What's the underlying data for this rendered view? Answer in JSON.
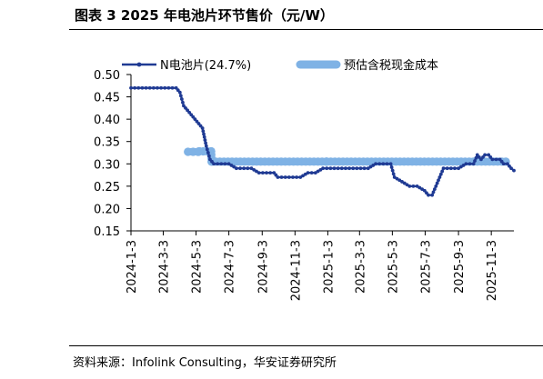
{
  "figure": {
    "title": "图表 3  2025 年电池片环节售价（元/W）",
    "source": "资料来源：Infolink Consulting，华安证券研究所"
  },
  "chart_data": {
    "type": "line",
    "ylim": [
      0.15,
      0.5
    ],
    "yticks": [
      "0.50",
      "0.45",
      "0.40",
      "0.35",
      "0.30",
      "0.25",
      "0.20",
      "0.15"
    ],
    "xlim": [
      "2024-01-03",
      "2025-12-15"
    ],
    "xticks": [
      "2024-1-3",
      "2024-3-3",
      "2024-5-3",
      "2024-7-3",
      "2024-9-3",
      "2024-11-3",
      "2025-1-3",
      "2025-3-3",
      "2025-5-3",
      "2025-7-3",
      "2025-9-3",
      "2025-11-3"
    ],
    "legend_position": "top",
    "grid": false,
    "series": [
      {
        "name": "N电池片(24.7%)",
        "color": "#1f3a93",
        "marker": "small-dot",
        "points": [
          [
            "2024-01-03",
            0.47
          ],
          [
            "2024-01-17",
            0.47
          ],
          [
            "2024-01-31",
            0.47
          ],
          [
            "2024-02-14",
            0.47
          ],
          [
            "2024-02-28",
            0.47
          ],
          [
            "2024-03-13",
            0.47
          ],
          [
            "2024-03-27",
            0.47
          ],
          [
            "2024-04-03",
            0.46
          ],
          [
            "2024-04-10",
            0.43
          ],
          [
            "2024-04-17",
            0.42
          ],
          [
            "2024-04-24",
            0.41
          ],
          [
            "2024-05-01",
            0.4
          ],
          [
            "2024-05-08",
            0.39
          ],
          [
            "2024-05-15",
            0.38
          ],
          [
            "2024-05-22",
            0.34
          ],
          [
            "2024-05-29",
            0.31
          ],
          [
            "2024-06-05",
            0.3
          ],
          [
            "2024-06-19",
            0.3
          ],
          [
            "2024-07-03",
            0.3
          ],
          [
            "2024-07-17",
            0.29
          ],
          [
            "2024-07-31",
            0.29
          ],
          [
            "2024-08-14",
            0.29
          ],
          [
            "2024-08-28",
            0.28
          ],
          [
            "2024-09-11",
            0.28
          ],
          [
            "2024-09-25",
            0.28
          ],
          [
            "2024-10-02",
            0.27
          ],
          [
            "2024-10-16",
            0.27
          ],
          [
            "2024-10-30",
            0.27
          ],
          [
            "2024-11-13",
            0.27
          ],
          [
            "2024-11-27",
            0.28
          ],
          [
            "2024-12-11",
            0.28
          ],
          [
            "2024-12-25",
            0.29
          ],
          [
            "2025-01-08",
            0.29
          ],
          [
            "2025-01-22",
            0.29
          ],
          [
            "2025-02-05",
            0.29
          ],
          [
            "2025-02-19",
            0.29
          ],
          [
            "2025-03-05",
            0.29
          ],
          [
            "2025-03-19",
            0.29
          ],
          [
            "2025-04-02",
            0.3
          ],
          [
            "2025-04-16",
            0.3
          ],
          [
            "2025-04-30",
            0.3
          ],
          [
            "2025-05-07",
            0.27
          ],
          [
            "2025-05-21",
            0.26
          ],
          [
            "2025-06-04",
            0.25
          ],
          [
            "2025-06-18",
            0.25
          ],
          [
            "2025-07-02",
            0.24
          ],
          [
            "2025-07-09",
            0.23
          ],
          [
            "2025-07-16",
            0.23
          ],
          [
            "2025-07-23",
            0.25
          ],
          [
            "2025-07-30",
            0.27
          ],
          [
            "2025-08-06",
            0.29
          ],
          [
            "2025-08-20",
            0.29
          ],
          [
            "2025-09-03",
            0.29
          ],
          [
            "2025-09-17",
            0.3
          ],
          [
            "2025-10-01",
            0.3
          ],
          [
            "2025-10-08",
            0.32
          ],
          [
            "2025-10-15",
            0.31
          ],
          [
            "2025-10-22",
            0.32
          ],
          [
            "2025-10-29",
            0.32
          ],
          [
            "2025-11-05",
            0.31
          ],
          [
            "2025-11-12",
            0.31
          ],
          [
            "2025-11-19",
            0.31
          ],
          [
            "2025-11-26",
            0.3
          ],
          [
            "2025-12-03",
            0.3
          ],
          [
            "2025-12-10",
            0.29
          ],
          [
            "2025-12-15",
            0.285
          ]
        ]
      },
      {
        "name": "预估含税现金成本",
        "color": "#7fb2e5",
        "marker": "large-dot",
        "points": [
          [
            "2024-04-18",
            0.327
          ],
          [
            "2024-05-07",
            0.327
          ],
          [
            "2024-05-09",
            0.328
          ],
          [
            "2024-05-31",
            0.328
          ],
          [
            "2024-06-01",
            0.305
          ],
          [
            "2024-12-31",
            0.305
          ],
          [
            "2025-01-01",
            0.305
          ],
          [
            "2025-11-30",
            0.305
          ]
        ]
      }
    ]
  }
}
